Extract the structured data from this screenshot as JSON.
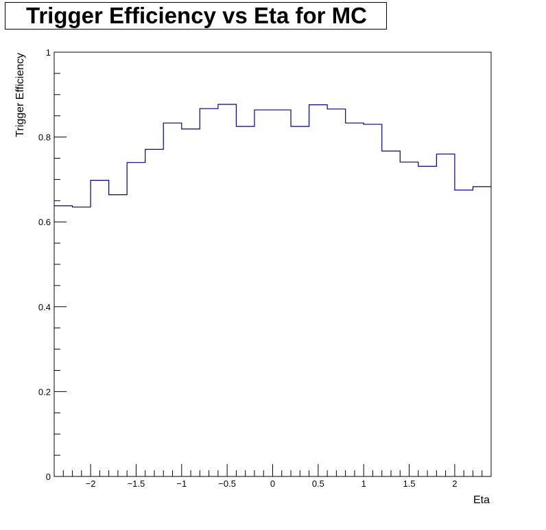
{
  "chart_data": {
    "type": "line",
    "subtype": "histogram-step",
    "title": "Trigger Efficiency vs Eta for MC",
    "xlabel": "Eta",
    "ylabel": "Trigger Efficiency",
    "xlim": [
      -2.4,
      2.4
    ],
    "ylim": [
      0,
      1
    ],
    "grid": false,
    "line_color": "#000080",
    "x_ticks": [
      -2,
      -1.5,
      -1,
      -0.5,
      0,
      0.5,
      1,
      1.5,
      2
    ],
    "x_tick_labels": [
      "−2",
      "−1.5",
      "−1",
      "−0.5",
      "0",
      "0.5",
      "1",
      "1.5",
      "2"
    ],
    "y_ticks": [
      0,
      0.2,
      0.4,
      0.6,
      0.8,
      1
    ],
    "y_tick_labels": [
      "0",
      "0.2",
      "0.4",
      "0.6",
      "0.8",
      "1"
    ],
    "bin_edges": [
      -2.4,
      -2.2,
      -2.0,
      -1.8,
      -1.6,
      -1.4,
      -1.2,
      -1.0,
      -0.8,
      -0.6,
      -0.4,
      -0.2,
      0.0,
      0.2,
      0.4,
      0.6,
      0.8,
      1.0,
      1.2,
      1.4,
      1.6,
      1.8,
      2.0,
      2.2,
      2.4
    ],
    "values": [
      0.638,
      0.635,
      0.698,
      0.664,
      0.74,
      0.771,
      0.833,
      0.819,
      0.867,
      0.877,
      0.825,
      0.864,
      0.864,
      0.825,
      0.876,
      0.866,
      0.833,
      0.83,
      0.767,
      0.741,
      0.731,
      0.76,
      0.675,
      0.683
    ]
  }
}
